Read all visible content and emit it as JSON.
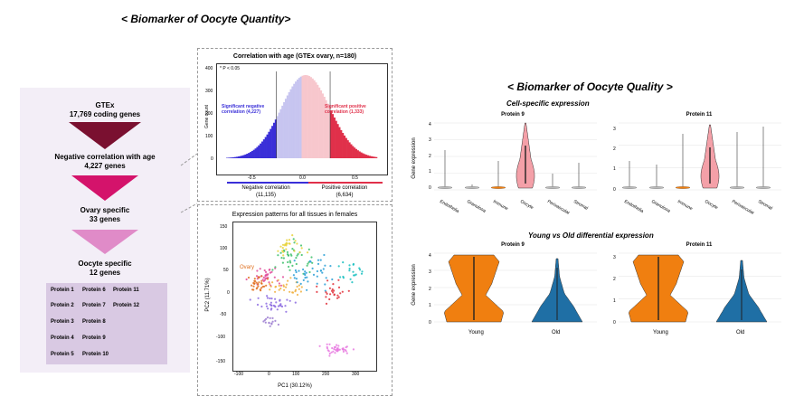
{
  "titles": {
    "quantity": "< Biomarker of Oocyte Quantity>",
    "quality": "< Biomarker of Oocyte Quality >"
  },
  "funnel": {
    "step1_line1": "GTEx",
    "step1_line2": "17,769 coding genes",
    "step2_line1": "Negative correlation with age",
    "step2_line2": "4,227 genes",
    "step3_line1": "Ovary specific",
    "step3_line2": "33 genes",
    "step4_line1": "Oocyte specific",
    "step4_line2": "12 genes",
    "colors": [
      "#7a1030",
      "#d4136b",
      "#e08bc8"
    ],
    "proteins": [
      [
        "Protein 1",
        "Protein 6",
        "Protein 11"
      ],
      [
        "Protein 2",
        "Protein 7",
        "Protein 12"
      ],
      [
        "Protein 3",
        "Protein 8"
      ],
      [
        "Protein 4",
        "Protein 9"
      ],
      [
        "Protein 5",
        "Protein 10"
      ]
    ]
  },
  "histogram": {
    "title": "Correlation with age (GTEx ovary, n=180)",
    "pvalue_note": "* P < 0.05",
    "ylabel": "Gene count",
    "neg_annotation_line1": "Significant negative",
    "neg_annotation_line2": "correlation (4,227)",
    "pos_annotation_line1": "Significant positive",
    "pos_annotation_line2": "correlation (1,333)",
    "yticks": [
      "400",
      "300",
      "200",
      "100",
      "0"
    ],
    "xticks": [
      "-0.5",
      "0.0",
      "0.5"
    ],
    "neg_label_line1": "Negative correlation",
    "neg_label_line2": "(11,135)",
    "pos_label_line1": "Positive correlation",
    "pos_label_line2": "(6,634)",
    "neg_color": "#3a2fd8",
    "pos_color": "#e0304a"
  },
  "pca": {
    "title": "Expression patterns for all tissues in females",
    "xlabel": "PC1 (30.12%)",
    "ylabel": "PC2 (11.71%)",
    "ovary_label": "Ovary",
    "xticks": [
      "-100",
      "0",
      "100",
      "200",
      "300"
    ],
    "yticks": [
      "150",
      "100",
      "50",
      "0",
      "-50",
      "-100",
      "-150"
    ]
  },
  "quality": {
    "cell_specific_title": "Cell-specific expression",
    "differential_title": "Young vs Old differential expression",
    "ylabel": "Gene expression",
    "protein9_title": "Protein 9",
    "protein11_title": "Protein 11",
    "cell_types": [
      "Endothelia",
      "Granulosa",
      "Immune",
      "Oocyte",
      "Perivascular",
      "Stromal"
    ],
    "groups": [
      "Young",
      "Old"
    ],
    "yticks4": [
      "4",
      "3",
      "2",
      "1",
      "0"
    ],
    "yticks3": [
      "3",
      "2",
      "1",
      "0"
    ],
    "young_color": "#f07f10",
    "old_color": "#1f6fa5",
    "oocyte_color": "#f4a0a8"
  }
}
